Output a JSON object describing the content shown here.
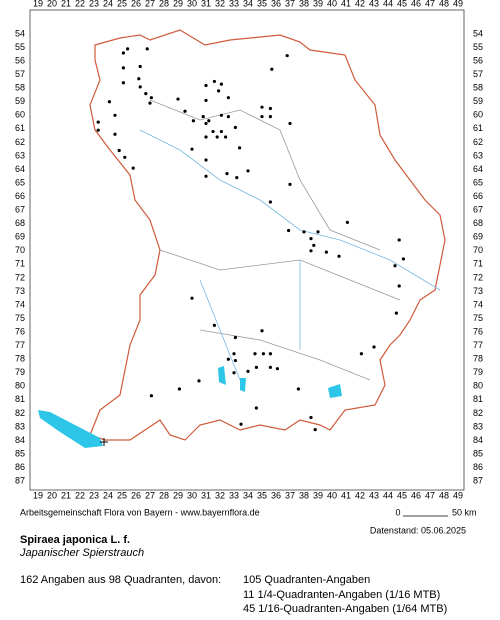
{
  "x_labels": [
    19,
    20,
    21,
    22,
    23,
    24,
    25,
    26,
    27,
    28,
    29,
    30,
    31,
    32,
    33,
    34,
    35,
    36,
    37,
    38,
    39,
    40,
    41,
    42,
    43,
    44,
    45,
    46,
    47,
    48,
    49
  ],
  "y_labels": [
    54,
    55,
    56,
    57,
    58,
    59,
    60,
    61,
    62,
    63,
    64,
    65,
    66,
    67,
    68,
    69,
    70,
    71,
    72,
    73,
    74,
    75,
    76,
    77,
    78,
    79,
    80,
    81,
    82,
    83,
    84,
    85,
    86,
    87
  ],
  "records": [
    [
      25.1,
      55.4
    ],
    [
      25.4,
      55.1
    ],
    [
      26.8,
      55.1
    ],
    [
      25.1,
      56.5
    ],
    [
      26.3,
      56.4
    ],
    [
      26.2,
      57.3
    ],
    [
      25.1,
      57.6
    ],
    [
      26.3,
      57.9
    ],
    [
      26.7,
      58.4
    ],
    [
      27.1,
      58.7
    ],
    [
      24.1,
      59
    ],
    [
      27,
      59.1
    ],
    [
      29,
      58.8
    ],
    [
      24.5,
      60
    ],
    [
      29.5,
      59.7
    ],
    [
      31,
      58.9
    ],
    [
      31,
      57.8
    ],
    [
      31.6,
      57.5
    ],
    [
      32.1,
      57.7
    ],
    [
      31.9,
      58.2
    ],
    [
      32.6,
      58.7
    ],
    [
      30.1,
      60.4
    ],
    [
      30.8,
      60.1
    ],
    [
      31.2,
      60.4
    ],
    [
      32.1,
      60
    ],
    [
      32.6,
      60.1
    ],
    [
      31,
      60.6
    ],
    [
      31.5,
      61.2
    ],
    [
      32.1,
      61.2
    ],
    [
      33.1,
      60.9
    ],
    [
      35,
      60.1
    ],
    [
      35.6,
      60.1
    ],
    [
      35,
      59.4
    ],
    [
      35.6,
      59.5
    ],
    [
      36.8,
      55.6
    ],
    [
      35.7,
      56.6
    ],
    [
      37,
      60.6
    ],
    [
      23.3,
      60.5
    ],
    [
      23.3,
      61.1
    ],
    [
      24.5,
      61.4
    ],
    [
      24.8,
      62.6
    ],
    [
      25.2,
      63.1
    ],
    [
      25.8,
      63.9
    ],
    [
      30,
      62.5
    ],
    [
      31,
      61.6
    ],
    [
      31.8,
      61.6
    ],
    [
      32.4,
      61.6
    ],
    [
      33.4,
      62.4
    ],
    [
      31,
      63.3
    ],
    [
      31,
      64.5
    ],
    [
      32.5,
      64.3
    ],
    [
      33.2,
      64.6
    ],
    [
      34,
      64.1
    ],
    [
      37,
      65.1
    ],
    [
      35.6,
      66.4
    ],
    [
      36.9,
      68.5
    ],
    [
      38,
      68.6
    ],
    [
      38.5,
      69.1
    ],
    [
      38.7,
      69.6
    ],
    [
      39,
      68.6
    ],
    [
      38.5,
      70
    ],
    [
      39.6,
      70.1
    ],
    [
      40.5,
      70.4
    ],
    [
      41.1,
      67.9
    ],
    [
      44.8,
      69.2
    ],
    [
      44.5,
      71.1
    ],
    [
      45.1,
      70.6
    ],
    [
      44.8,
      72.6
    ],
    [
      30,
      73.5
    ],
    [
      31.6,
      75.5
    ],
    [
      33.1,
      76.4
    ],
    [
      35,
      75.9
    ],
    [
      33,
      77.6
    ],
    [
      34.5,
      77.6
    ],
    [
      35.1,
      77.6
    ],
    [
      35.6,
      77.6
    ],
    [
      32.6,
      78
    ],
    [
      33.1,
      78.1
    ],
    [
      34.6,
      78.6
    ],
    [
      35.6,
      78.6
    ],
    [
      34,
      78.9
    ],
    [
      33,
      79
    ],
    [
      36.1,
      78.7
    ],
    [
      37.6,
      80.2
    ],
    [
      29.1,
      80.2
    ],
    [
      27.1,
      80.7
    ],
    [
      30.5,
      79.6
    ],
    [
      42.1,
      77.6
    ],
    [
      43,
      77.1
    ],
    [
      44.6,
      74.6
    ],
    [
      34.6,
      81.6
    ],
    [
      38.5,
      82.3
    ],
    [
      38.8,
      83.2
    ],
    [
      33.5,
      82.8
    ]
  ],
  "credit": "Arbeitsgemeinschaft Flora von Bayern - www.bayernflora.de",
  "scale": {
    "start": "0",
    "end": "50 km"
  },
  "date": "Datenstand: 05.06.2025",
  "title": "Spiraea japonica L. f.",
  "subtitle": "Japanischer Spierstrauch",
  "summary": "162 Angaben aus 98 Quadranten, davon:",
  "breakdown": [
    "105 Quadranten-Angaben",
    "11 1/4-Quadranten-Angaben (1/16 MTB)",
    "45 1/16-Quadranten-Angaben (1/64 MTB)"
  ]
}
